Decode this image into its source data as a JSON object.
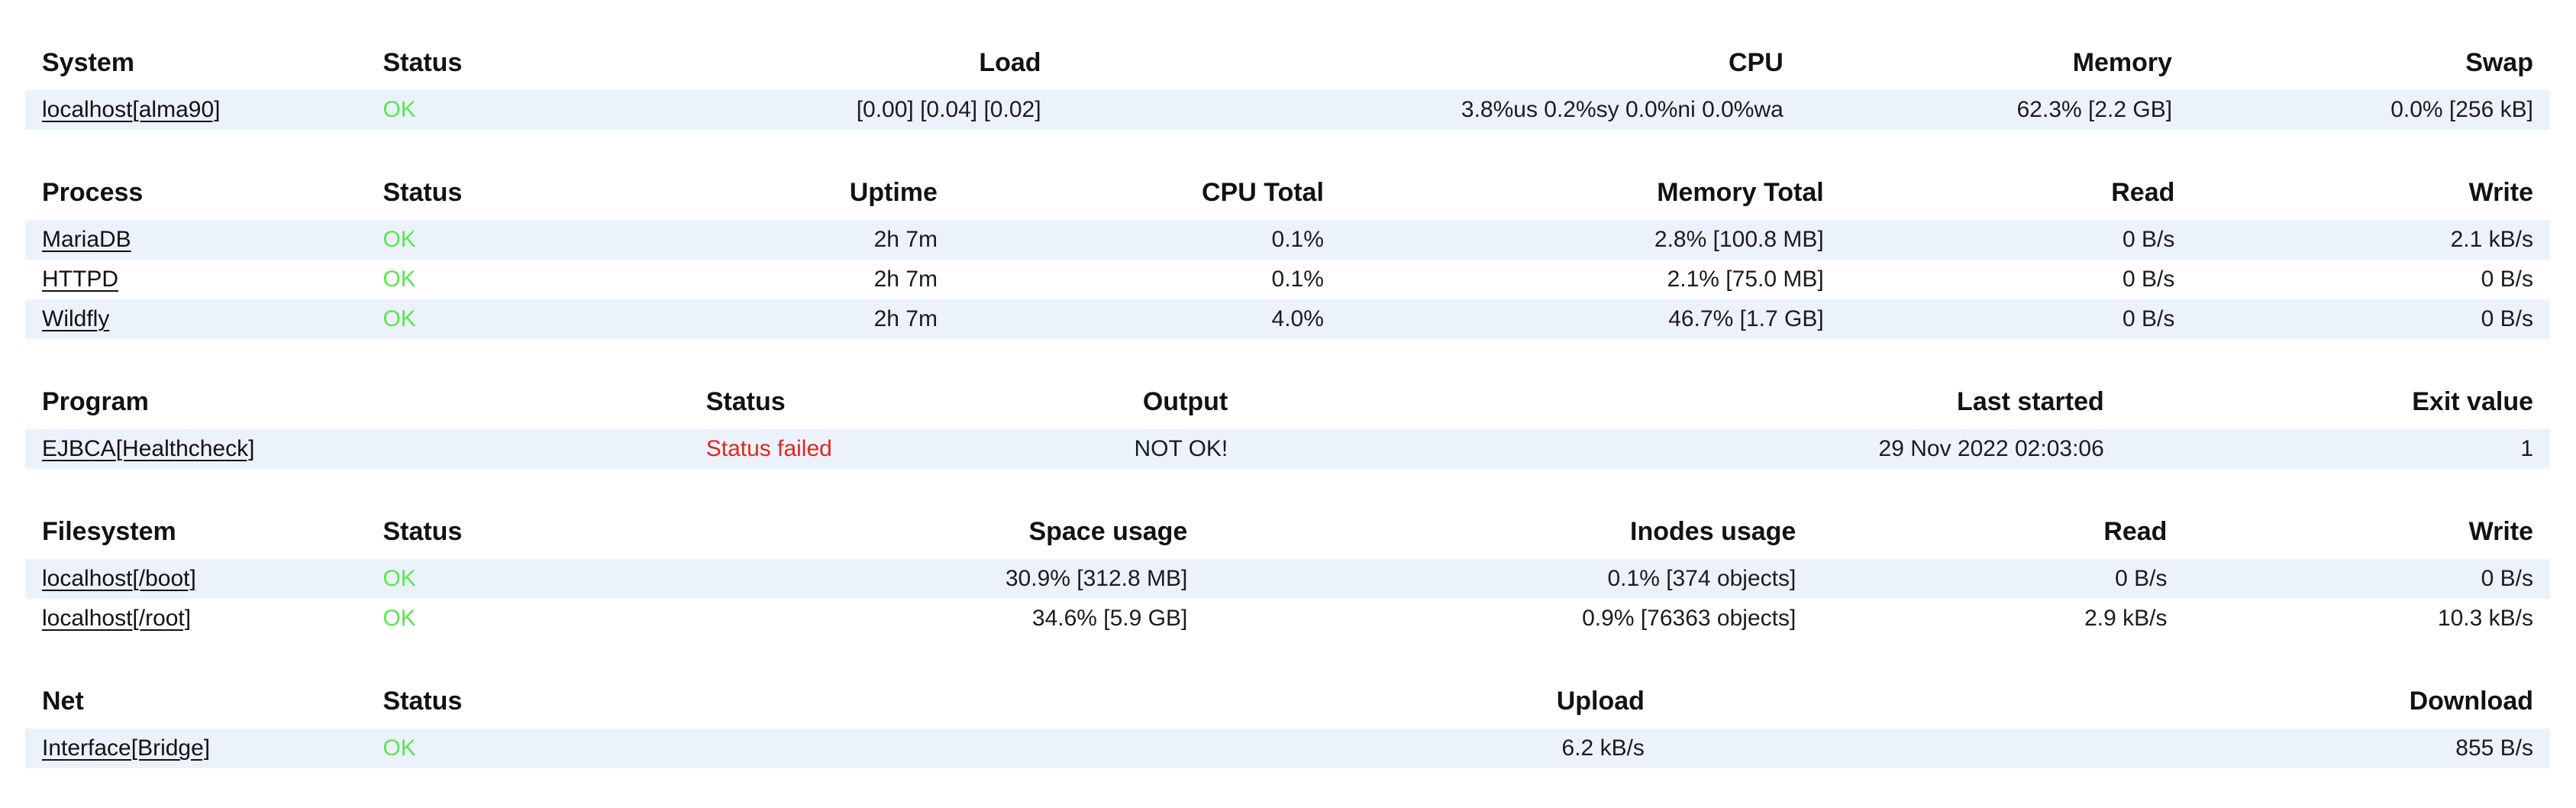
{
  "page": {
    "title": "Monit Service Manager",
    "background": "#ffffff"
  },
  "colors": {
    "row_tint": "#ebf2fb",
    "ok_green": "#5be64e",
    "fail_red": "#e3261d",
    "header_text": "#121212",
    "body_text": "#1c1c1c"
  },
  "tables": [
    {
      "id": "system",
      "columns": [
        {
          "label": "System",
          "align": "left",
          "width": "13.5%"
        },
        {
          "label": "Status",
          "align": "left",
          "width": "13.0%"
        },
        {
          "label": "Load",
          "align": "right",
          "width": "14.4%"
        },
        {
          "label": "CPU",
          "align": "right",
          "width": "29.4%"
        },
        {
          "label": "Memory",
          "align": "right",
          "width": "15.4%"
        },
        {
          "label": "Swap",
          "align": "right",
          "width": "14.3%"
        }
      ],
      "rows": [
        {
          "cells": [
            {
              "text": "localhost[alma90]",
              "type": "link"
            },
            {
              "text": "OK",
              "type": "ok"
            },
            {
              "text": "[0.00] [0.04] [0.02]",
              "type": "text"
            },
            {
              "text": "3.8%us 0.2%sy 0.0%ni 0.0%wa",
              "type": "text"
            },
            {
              "text": "62.3% [2.2 GB]",
              "type": "text"
            },
            {
              "text": "0.0% [256 kB]",
              "type": "text"
            }
          ]
        }
      ]
    },
    {
      "id": "process",
      "columns": [
        {
          "label": "Process",
          "align": "left",
          "width": "13.5%"
        },
        {
          "label": "Status",
          "align": "left",
          "width": "13.0%"
        },
        {
          "label": "Uptime",
          "align": "right",
          "width": "10.3%"
        },
        {
          "label": "CPU Total",
          "align": "right",
          "width": "15.3%"
        },
        {
          "label": "Memory Total",
          "align": "right",
          "width": "19.8%"
        },
        {
          "label": "Read",
          "align": "right",
          "width": "13.9%"
        },
        {
          "label": "Write",
          "align": "right",
          "width": "14.2%"
        }
      ],
      "rows": [
        {
          "cells": [
            {
              "text": "MariaDB",
              "type": "link"
            },
            {
              "text": "OK",
              "type": "ok"
            },
            {
              "text": "2h 7m",
              "type": "text"
            },
            {
              "text": "0.1%",
              "type": "text"
            },
            {
              "text": "2.8% [100.8 MB]",
              "type": "text"
            },
            {
              "text": "0 B/s",
              "type": "text"
            },
            {
              "text": "2.1 kB/s",
              "type": "text"
            }
          ]
        },
        {
          "cells": [
            {
              "text": "HTTPD",
              "type": "link"
            },
            {
              "text": "OK",
              "type": "ok"
            },
            {
              "text": "2h 7m",
              "type": "text"
            },
            {
              "text": "0.1%",
              "type": "text"
            },
            {
              "text": "2.1% [75.0 MB]",
              "type": "text"
            },
            {
              "text": "0 B/s",
              "type": "text"
            },
            {
              "text": "0 B/s",
              "type": "text"
            }
          ]
        },
        {
          "cells": [
            {
              "text": "Wildfly",
              "type": "link"
            },
            {
              "text": "OK",
              "type": "ok"
            },
            {
              "text": "2h 7m",
              "type": "text"
            },
            {
              "text": "4.0%",
              "type": "text"
            },
            {
              "text": "46.7% [1.7 GB]",
              "type": "text"
            },
            {
              "text": "0 B/s",
              "type": "text"
            },
            {
              "text": "0 B/s",
              "type": "text"
            }
          ]
        }
      ]
    },
    {
      "id": "program",
      "columns": [
        {
          "label": "Program",
          "align": "left",
          "width": "26.3%"
        },
        {
          "label": "Status",
          "align": "left",
          "width": "13.0%"
        },
        {
          "label": "Output",
          "align": "right",
          "width": "9.0%"
        },
        {
          "label": "Last started",
          "align": "right",
          "width": "34.7%"
        },
        {
          "label": "Exit value",
          "align": "right",
          "width": "17.0%"
        }
      ],
      "rows": [
        {
          "cells": [
            {
              "text": "EJBCA[Healthcheck]",
              "type": "link"
            },
            {
              "text": "Status failed",
              "type": "fail"
            },
            {
              "text": "NOT OK!",
              "type": "text"
            },
            {
              "text": "29 Nov 2022 02:03:06",
              "type": "text"
            },
            {
              "text": "1",
              "type": "text"
            }
          ]
        }
      ]
    },
    {
      "id": "filesystem",
      "columns": [
        {
          "label": "Filesystem",
          "align": "left",
          "width": "13.5%"
        },
        {
          "label": "Status",
          "align": "left",
          "width": "13.0%"
        },
        {
          "label": "Space usage",
          "align": "right",
          "width": "20.2%"
        },
        {
          "label": "Inodes usage",
          "align": "right",
          "width": "24.1%"
        },
        {
          "label": "Read",
          "align": "right",
          "width": "14.7%"
        },
        {
          "label": "Write",
          "align": "right",
          "width": "14.5%"
        }
      ],
      "rows": [
        {
          "cells": [
            {
              "text": "localhost[/boot]",
              "type": "link"
            },
            {
              "text": "OK",
              "type": "ok"
            },
            {
              "text": "30.9% [312.8 MB]",
              "type": "text"
            },
            {
              "text": "0.1% [374 objects]",
              "type": "text"
            },
            {
              "text": "0 B/s",
              "type": "text"
            },
            {
              "text": "0 B/s",
              "type": "text"
            }
          ]
        },
        {
          "cells": [
            {
              "text": "localhost[/root]",
              "type": "link"
            },
            {
              "text": "OK",
              "type": "ok"
            },
            {
              "text": "34.6% [5.9 GB]",
              "type": "text"
            },
            {
              "text": "0.9% [76363 objects]",
              "type": "text"
            },
            {
              "text": "2.9 kB/s",
              "type": "text"
            },
            {
              "text": "10.3 kB/s",
              "type": "text"
            }
          ]
        }
      ]
    },
    {
      "id": "net",
      "columns": [
        {
          "label": "Net",
          "align": "left",
          "width": "13.5%"
        },
        {
          "label": "Status",
          "align": "left",
          "width": "13.0%"
        },
        {
          "label": "Upload",
          "align": "right",
          "width": "38.3%"
        },
        {
          "label": "Download",
          "align": "right",
          "width": "35.2%"
        }
      ],
      "rows": [
        {
          "cells": [
            {
              "text": "Interface[Bridge]",
              "type": "link"
            },
            {
              "text": "OK",
              "type": "ok"
            },
            {
              "text": "6.2 kB/s",
              "type": "text"
            },
            {
              "text": "855 B/s",
              "type": "text"
            }
          ]
        }
      ]
    }
  ]
}
